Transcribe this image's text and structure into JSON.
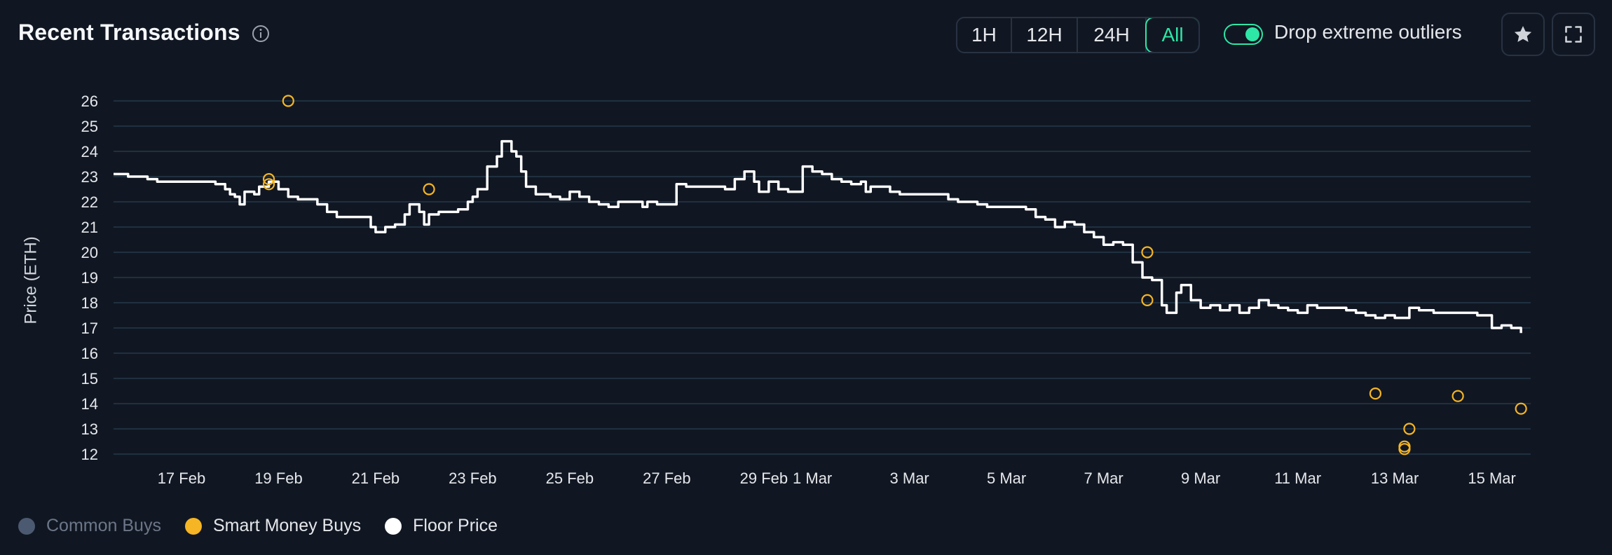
{
  "header": {
    "title": "Recent Transactions",
    "ranges": [
      "1H",
      "12H",
      "24H",
      "All"
    ],
    "active_range": "All",
    "toggle_label": "Drop extreme outliers",
    "toggle_on": true,
    "star_icon": "star-icon",
    "expand_icon": "expand-icon",
    "info_icon": "info-icon"
  },
  "legend": {
    "common": "Common Buys",
    "smart": "Smart Money Buys",
    "floor": "Floor Price"
  },
  "colors": {
    "accent": "#2ee6a6",
    "smart": "#f5b524",
    "common": "#4b5a70",
    "floor": "#ffffff",
    "grid": "#1f3040"
  },
  "chart_data": {
    "type": "line",
    "ylabel": "Price (ETH)",
    "ylim": [
      12,
      26
    ],
    "yticks": [
      12,
      13,
      14,
      15,
      16,
      17,
      18,
      19,
      20,
      21,
      22,
      23,
      24,
      25,
      26
    ],
    "xlim": [
      15.6,
      44.8
    ],
    "xticks": [
      {
        "x": 17,
        "label": "17 Feb"
      },
      {
        "x": 19,
        "label": "19 Feb"
      },
      {
        "x": 21,
        "label": "21 Feb"
      },
      {
        "x": 23,
        "label": "23 Feb"
      },
      {
        "x": 25,
        "label": "25 Feb"
      },
      {
        "x": 27,
        "label": "27 Feb"
      },
      {
        "x": 29,
        "label": "29 Feb"
      },
      {
        "x": 30,
        "label": "1 Mar"
      },
      {
        "x": 32,
        "label": "3 Mar"
      },
      {
        "x": 34,
        "label": "5 Mar"
      },
      {
        "x": 36,
        "label": "7 Mar"
      },
      {
        "x": 38,
        "label": "9 Mar"
      },
      {
        "x": 40,
        "label": "11 Mar"
      },
      {
        "x": 42,
        "label": "13 Mar"
      },
      {
        "x": 44,
        "label": "15 Mar"
      }
    ],
    "x_axis_note": "x values are days in February 2024 (Feb 29 = 29, Mar 1 = 30)",
    "grid": true,
    "legend_position": "bottom-left",
    "series": [
      {
        "name": "Floor Price",
        "color": "#ffffff",
        "points": [
          [
            15.6,
            23.1
          ],
          [
            15.9,
            23.0
          ],
          [
            16.1,
            23.0
          ],
          [
            16.3,
            22.9
          ],
          [
            16.5,
            22.8
          ],
          [
            16.8,
            22.8
          ],
          [
            17.1,
            22.8
          ],
          [
            17.4,
            22.8
          ],
          [
            17.7,
            22.7
          ],
          [
            17.9,
            22.5
          ],
          [
            18.0,
            22.3
          ],
          [
            18.1,
            22.2
          ],
          [
            18.2,
            21.9
          ],
          [
            18.3,
            22.4
          ],
          [
            18.5,
            22.3
          ],
          [
            18.6,
            22.6
          ],
          [
            18.8,
            22.8
          ],
          [
            19.0,
            22.5
          ],
          [
            19.2,
            22.2
          ],
          [
            19.4,
            22.1
          ],
          [
            19.6,
            22.1
          ],
          [
            19.8,
            21.9
          ],
          [
            20.0,
            21.6
          ],
          [
            20.2,
            21.4
          ],
          [
            20.5,
            21.4
          ],
          [
            20.8,
            21.4
          ],
          [
            20.9,
            21.0
          ],
          [
            21.0,
            20.8
          ],
          [
            21.2,
            21.0
          ],
          [
            21.4,
            21.1
          ],
          [
            21.6,
            21.5
          ],
          [
            21.7,
            21.9
          ],
          [
            21.9,
            21.6
          ],
          [
            22.0,
            21.1
          ],
          [
            22.1,
            21.5
          ],
          [
            22.3,
            21.6
          ],
          [
            22.5,
            21.6
          ],
          [
            22.7,
            21.7
          ],
          [
            22.9,
            22.0
          ],
          [
            23.0,
            22.2
          ],
          [
            23.1,
            22.5
          ],
          [
            23.3,
            23.4
          ],
          [
            23.5,
            23.8
          ],
          [
            23.6,
            24.4
          ],
          [
            23.8,
            24.0
          ],
          [
            23.9,
            23.8
          ],
          [
            24.0,
            23.2
          ],
          [
            24.1,
            22.6
          ],
          [
            24.3,
            22.3
          ],
          [
            24.6,
            22.2
          ],
          [
            24.8,
            22.1
          ],
          [
            25.0,
            22.4
          ],
          [
            25.2,
            22.2
          ],
          [
            25.4,
            22.0
          ],
          [
            25.6,
            21.9
          ],
          [
            25.8,
            21.8
          ],
          [
            26.0,
            22.0
          ],
          [
            26.3,
            22.0
          ],
          [
            26.5,
            21.8
          ],
          [
            26.6,
            22.0
          ],
          [
            26.8,
            21.9
          ],
          [
            27.0,
            21.9
          ],
          [
            27.2,
            22.7
          ],
          [
            27.4,
            22.6
          ],
          [
            27.7,
            22.6
          ],
          [
            28.0,
            22.6
          ],
          [
            28.2,
            22.5
          ],
          [
            28.4,
            22.9
          ],
          [
            28.6,
            23.2
          ],
          [
            28.8,
            22.8
          ],
          [
            28.9,
            22.4
          ],
          [
            29.1,
            22.8
          ],
          [
            29.3,
            22.5
          ],
          [
            29.5,
            22.4
          ],
          [
            29.7,
            22.4
          ],
          [
            29.8,
            23.4
          ],
          [
            30.0,
            23.2
          ],
          [
            30.2,
            23.1
          ],
          [
            30.4,
            22.9
          ],
          [
            30.6,
            22.8
          ],
          [
            30.8,
            22.7
          ],
          [
            31.0,
            22.8
          ],
          [
            31.1,
            22.4
          ],
          [
            31.2,
            22.6
          ],
          [
            31.4,
            22.6
          ],
          [
            31.6,
            22.4
          ],
          [
            31.8,
            22.3
          ],
          [
            32.0,
            22.3
          ],
          [
            32.3,
            22.3
          ],
          [
            32.6,
            22.3
          ],
          [
            32.8,
            22.1
          ],
          [
            33.0,
            22.0
          ],
          [
            33.2,
            22.0
          ],
          [
            33.4,
            21.9
          ],
          [
            33.6,
            21.8
          ],
          [
            33.9,
            21.8
          ],
          [
            34.2,
            21.8
          ],
          [
            34.4,
            21.7
          ],
          [
            34.6,
            21.4
          ],
          [
            34.8,
            21.3
          ],
          [
            35.0,
            21.0
          ],
          [
            35.2,
            21.2
          ],
          [
            35.4,
            21.1
          ],
          [
            35.6,
            20.8
          ],
          [
            35.8,
            20.6
          ],
          [
            36.0,
            20.3
          ],
          [
            36.2,
            20.4
          ],
          [
            36.4,
            20.3
          ],
          [
            36.6,
            19.6
          ],
          [
            36.8,
            19.0
          ],
          [
            37.0,
            18.9
          ],
          [
            37.2,
            17.9
          ],
          [
            37.3,
            17.6
          ],
          [
            37.5,
            18.4
          ],
          [
            37.6,
            18.7
          ],
          [
            37.8,
            18.1
          ],
          [
            38.0,
            17.8
          ],
          [
            38.2,
            17.9
          ],
          [
            38.4,
            17.7
          ],
          [
            38.6,
            17.9
          ],
          [
            38.8,
            17.6
          ],
          [
            39.0,
            17.8
          ],
          [
            39.2,
            18.1
          ],
          [
            39.4,
            17.9
          ],
          [
            39.6,
            17.8
          ],
          [
            39.8,
            17.7
          ],
          [
            40.0,
            17.6
          ],
          [
            40.2,
            17.9
          ],
          [
            40.4,
            17.8
          ],
          [
            40.6,
            17.8
          ],
          [
            40.8,
            17.8
          ],
          [
            41.0,
            17.7
          ],
          [
            41.2,
            17.6
          ],
          [
            41.4,
            17.5
          ],
          [
            41.6,
            17.4
          ],
          [
            41.8,
            17.5
          ],
          [
            42.0,
            17.4
          ],
          [
            42.2,
            17.4
          ],
          [
            42.3,
            17.8
          ],
          [
            42.5,
            17.7
          ],
          [
            42.8,
            17.6
          ],
          [
            43.1,
            17.6
          ],
          [
            43.4,
            17.6
          ],
          [
            43.7,
            17.5
          ],
          [
            43.9,
            17.5
          ],
          [
            44.0,
            17.0
          ],
          [
            44.2,
            17.1
          ],
          [
            44.4,
            17.0
          ],
          [
            44.6,
            16.8
          ]
        ]
      },
      {
        "name": "Smart Money Buys",
        "color": "#f5b524",
        "points": [
          [
            18.8,
            22.9
          ],
          [
            18.8,
            22.7
          ],
          [
            19.2,
            26.0
          ],
          [
            22.1,
            22.5
          ],
          [
            36.9,
            20.0
          ],
          [
            36.9,
            18.1
          ],
          [
            41.6,
            14.4
          ],
          [
            42.2,
            12.3
          ],
          [
            42.2,
            12.2
          ],
          [
            42.3,
            13.0
          ],
          [
            43.3,
            14.3
          ],
          [
            44.6,
            13.8
          ]
        ]
      }
    ]
  }
}
